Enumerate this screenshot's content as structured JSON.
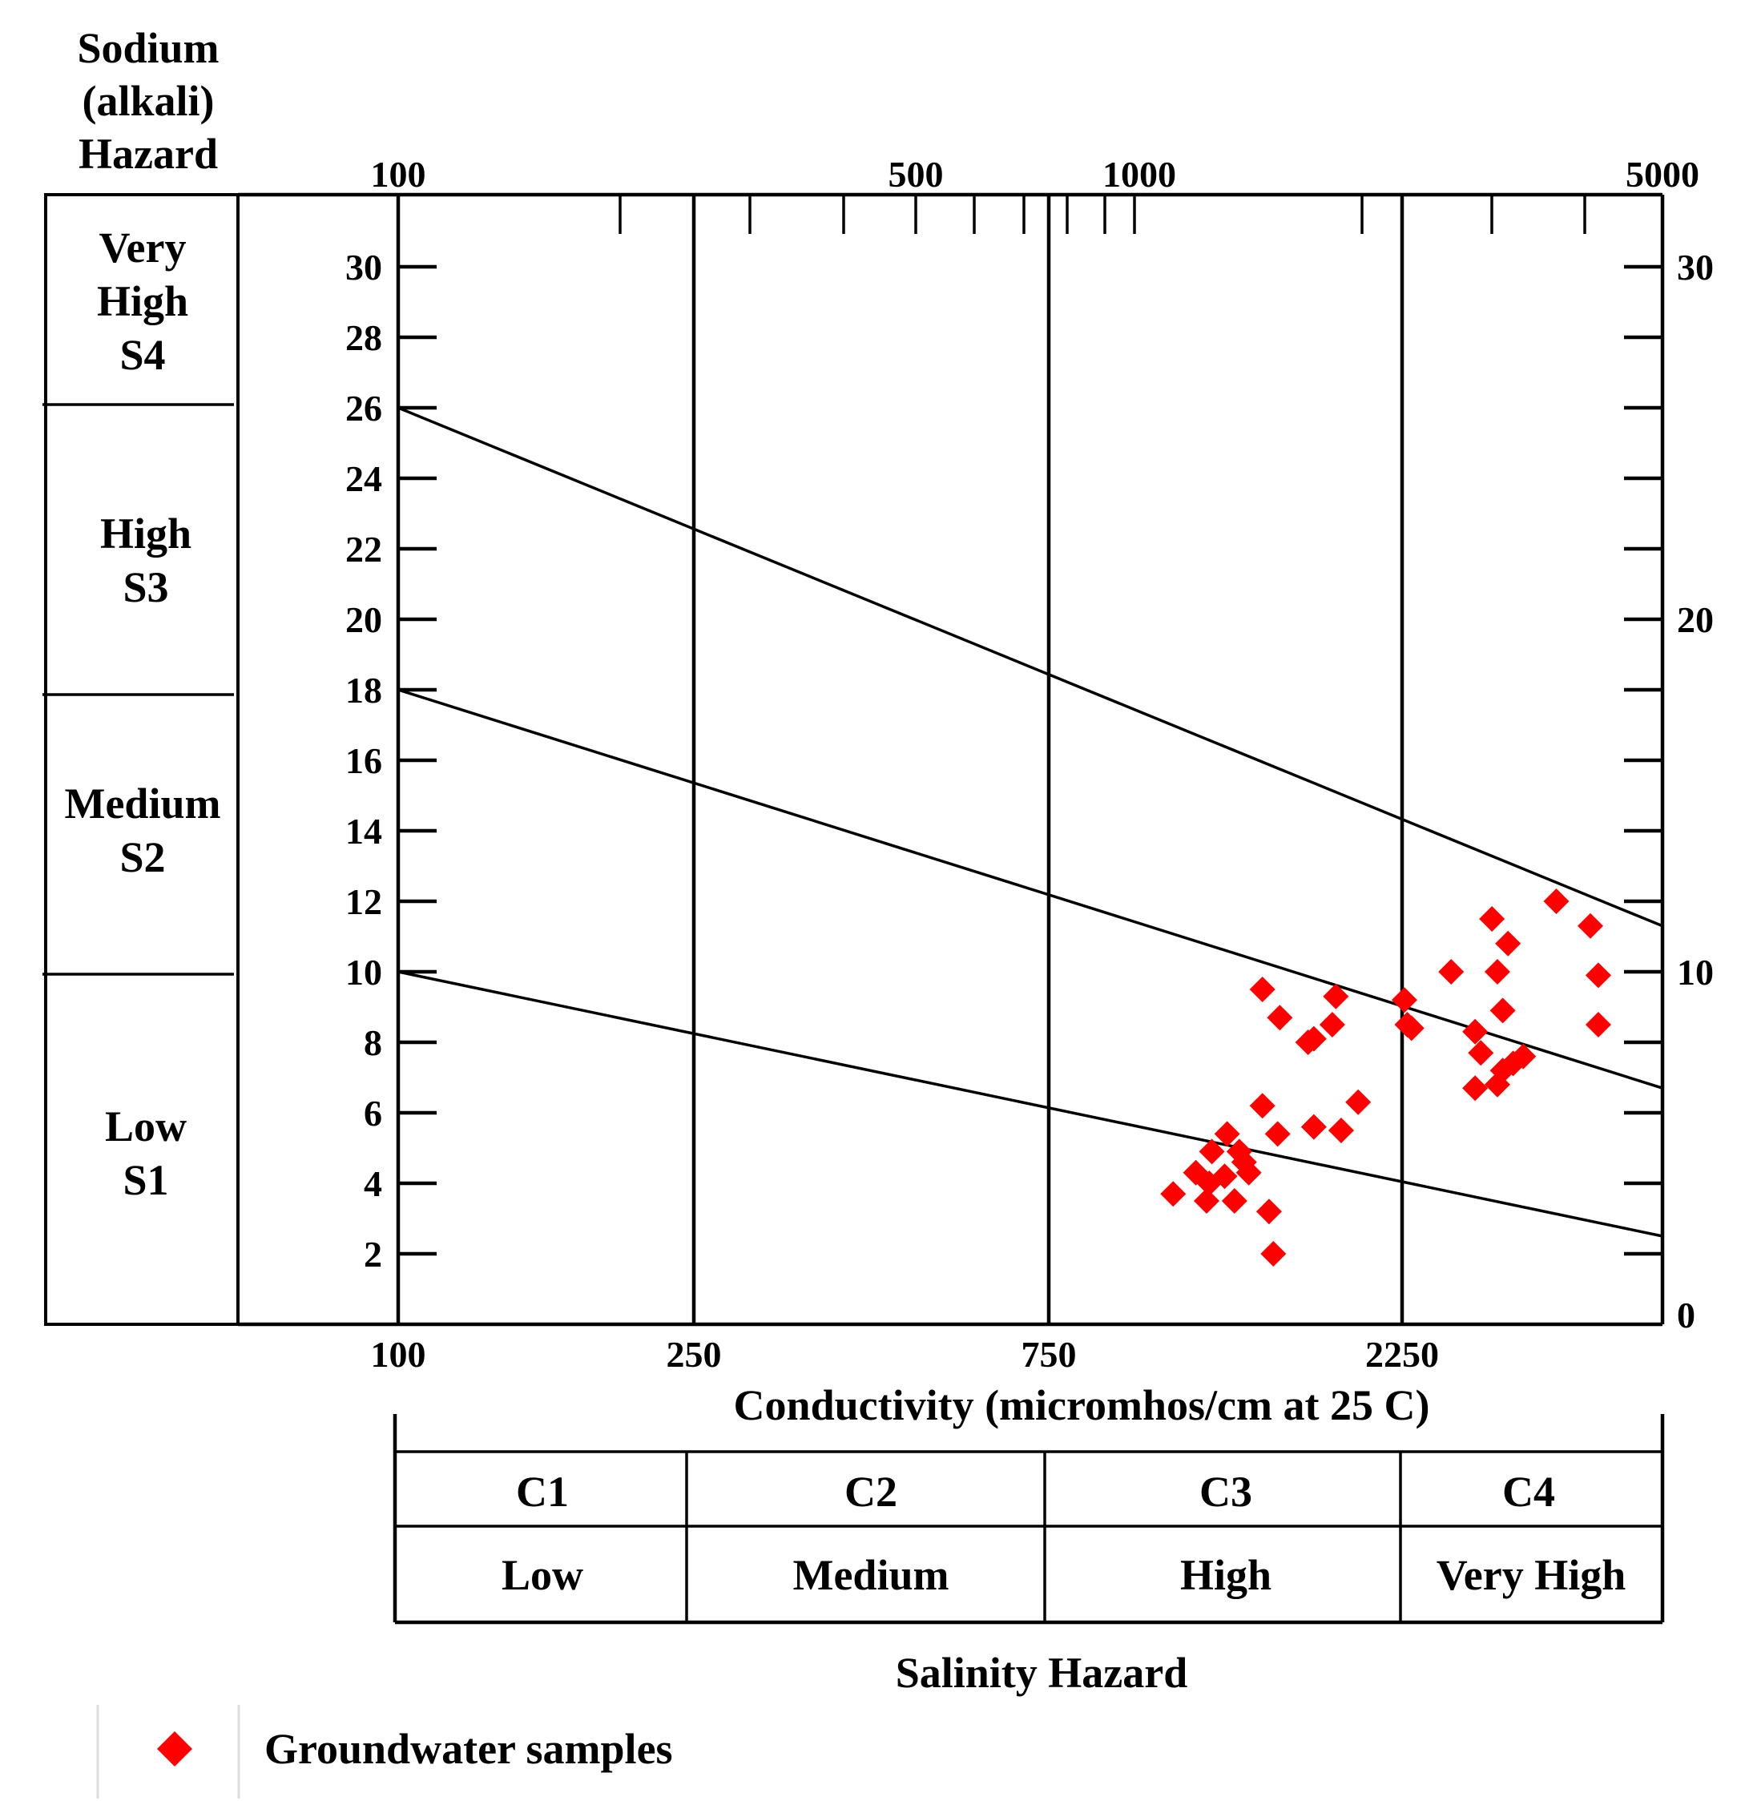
{
  "chart_data": {
    "type": "scatter",
    "title": "",
    "left_header": [
      "Sodium",
      "(alkali)",
      "Hazard"
    ],
    "sodium_classes": [
      {
        "lines": [
          "Very",
          "High",
          "S4"
        ]
      },
      {
        "lines": [
          "High",
          "S3"
        ]
      },
      {
        "lines": [
          "Medium",
          "S2"
        ]
      },
      {
        "lines": [
          "Low",
          "S1"
        ]
      }
    ],
    "y_left_ticks": [
      2,
      4,
      6,
      8,
      10,
      12,
      14,
      16,
      18,
      20,
      22,
      24,
      26,
      28,
      30
    ],
    "y_right_labels": [
      0,
      10,
      20,
      30
    ],
    "ylim": [
      0,
      32
    ],
    "top_axis_labels": [
      "100",
      "500",
      "1000",
      "5000"
    ],
    "bottom_axis_labels": [
      "100",
      "250",
      "750",
      "2250"
    ],
    "xlabel": "Conductivity (micromhos/cm at 25 C)",
    "salinity_table": {
      "classes": [
        "C1",
        "C2",
        "C3",
        "C4"
      ],
      "levels": [
        "Low",
        "Medium",
        "High",
        "Very High"
      ],
      "title": "Salinity Hazard"
    },
    "boundary_lines": [
      {
        "name": "S3-S4",
        "y_start": 26,
        "y_end": 11.3
      },
      {
        "name": "S2-S3",
        "y_start": 18,
        "y_end": 6.7
      },
      {
        "name": "S1-S2",
        "y_start": 10,
        "y_end": 2.5
      }
    ],
    "series": [
      {
        "name": "Groundwater samples",
        "color": "#ff0000",
        "marker": "diamond",
        "points": [
          [
            1100,
            3.7
          ],
          [
            1180,
            4.3
          ],
          [
            1220,
            3.5
          ],
          [
            1230,
            4.0
          ],
          [
            1240,
            4.9
          ],
          [
            1290,
            4.2
          ],
          [
            1300,
            5.4
          ],
          [
            1330,
            3.5
          ],
          [
            1350,
            4.9
          ],
          [
            1370,
            4.6
          ],
          [
            1390,
            4.3
          ],
          [
            1480,
            3.2
          ],
          [
            1500,
            2.0
          ],
          [
            1450,
            6.2
          ],
          [
            1520,
            5.4
          ],
          [
            1450,
            9.5
          ],
          [
            1530,
            8.7
          ],
          [
            1670,
            8.0
          ],
          [
            1700,
            8.1
          ],
          [
            1700,
            5.6
          ],
          [
            1800,
            8.5
          ],
          [
            1820,
            9.3
          ],
          [
            1850,
            5.5
          ],
          [
            1950,
            6.3
          ],
          [
            2250,
            9.2
          ],
          [
            2270,
            8.5
          ],
          [
            2300,
            8.4
          ],
          [
            2600,
            10.0
          ],
          [
            2800,
            6.7
          ],
          [
            2800,
            8.3
          ],
          [
            2850,
            7.7
          ],
          [
            2950,
            11.5
          ],
          [
            3000,
            10.0
          ],
          [
            3000,
            6.8
          ],
          [
            3050,
            7.2
          ],
          [
            3050,
            8.9
          ],
          [
            3100,
            10.8
          ],
          [
            3150,
            7.4
          ],
          [
            3250,
            7.6
          ],
          [
            3600,
            12.0
          ],
          [
            4000,
            11.3
          ],
          [
            4100,
            9.9
          ],
          [
            4100,
            8.5
          ]
        ]
      }
    ]
  },
  "legend": {
    "label": "Groundwater samples",
    "marker": "diamond-red"
  }
}
